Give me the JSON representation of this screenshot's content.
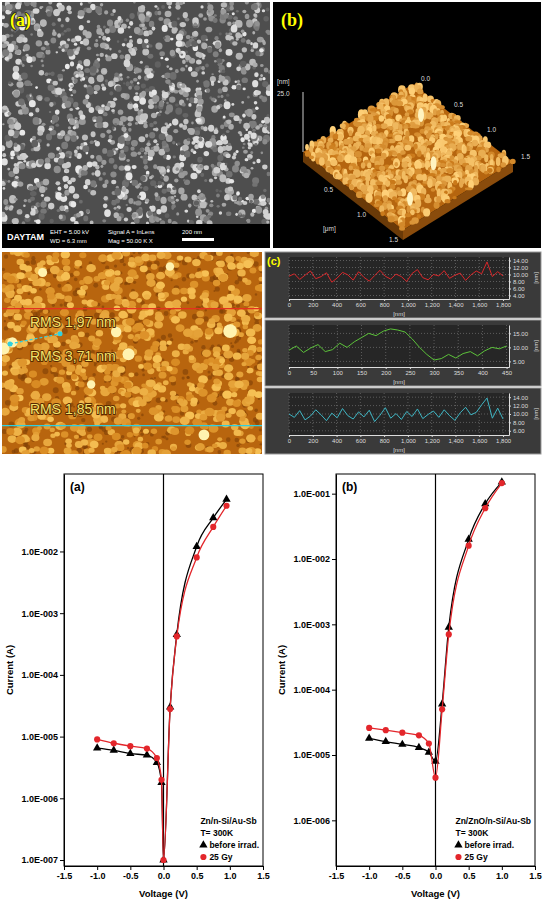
{
  "chart_data": [
    {
      "type": "image",
      "title": "(a)",
      "annotations": [
        "DAYTAM",
        "EHT = 5.00 kV",
        "WD = 6.3 mm",
        "Signal A = InLens",
        "Mag = 50.00 K X",
        "200 nm"
      ]
    },
    {
      "type": "image",
      "title": "(b)",
      "annotations": [
        "[nm]",
        "25.0",
        "0.5",
        "1.0",
        "1.5",
        "[μm]",
        "0.0",
        "0.5",
        "1.0",
        "1.5"
      ]
    },
    {
      "type": "image",
      "annotations": [
        "RMS 1,97 nm",
        "RMS 3,71 nm",
        "RMS 1,85 nm"
      ]
    },
    {
      "type": "line",
      "title": "(c)",
      "xlabel": "[nm]",
      "ylabel": "[nm]",
      "color": "#d8262a",
      "grid": true,
      "xlim": [
        0,
        1850
      ],
      "ylim": [
        3,
        15
      ],
      "xticks": [
        0,
        200,
        400,
        600,
        800,
        {
          "value": 1000,
          "label": "1,000"
        },
        {
          "value": 1200,
          "label": "1,200"
        },
        {
          "value": 1400,
          "label": "1,400"
        },
        {
          "value": 1600,
          "label": "1,600"
        },
        {
          "value": 1800,
          "label": "1,800"
        }
      ],
      "yticks": [
        {
          "value": 4,
          "label": "4.00"
        },
        {
          "value": 6,
          "label": "6.00"
        },
        {
          "value": 8,
          "label": "8.00"
        },
        {
          "value": 10,
          "label": "10.00"
        },
        {
          "value": 12,
          "label": "12.00"
        },
        {
          "value": 14,
          "label": "14.00"
        }
      ],
      "x": [
        0,
        45,
        90,
        135,
        180,
        225,
        270,
        315,
        360,
        405,
        450,
        495,
        540,
        585,
        630,
        675,
        720,
        765,
        810,
        855,
        900,
        945,
        990,
        1035,
        1080,
        1125,
        1170,
        1215,
        1260,
        1305,
        1350,
        1395,
        1440,
        1485,
        1530,
        1575,
        1620,
        1665,
        1710,
        1755,
        1800
      ],
      "values": [
        9.5,
        10.2,
        8.6,
        9.8,
        11.0,
        8.8,
        9.4,
        10.5,
        7.8,
        9.0,
        10.6,
        9.9,
        8.4,
        10.8,
        9.2,
        8.1,
        9.7,
        11.2,
        9.5,
        8.7,
        10.1,
        9.4,
        8.0,
        10.3,
        11.4,
        9.1,
        8.5,
        10.0,
        9.6,
        11.1,
        8.9,
        9.8,
        10.4,
        8.3,
        9.9,
        11.0,
        10.2,
        13.6,
        9.4,
        10.8,
        9.6
      ]
    },
    {
      "type": "line",
      "xlabel": "[nm]",
      "ylabel": "[nm]",
      "color": "#5cc23a",
      "grid": true,
      "xlim": [
        0,
        455
      ],
      "ylim": [
        3,
        18
      ],
      "xticks": [
        0,
        50,
        100,
        150,
        200,
        250,
        300,
        350,
        400,
        450
      ],
      "yticks": [
        {
          "value": 5,
          "label": "5.00"
        },
        {
          "value": 10,
          "label": "10.00"
        },
        {
          "value": 15,
          "label": "15.00"
        }
      ],
      "x": [
        0,
        15,
        30,
        45,
        60,
        75,
        90,
        105,
        120,
        135,
        150,
        165,
        180,
        195,
        210,
        225,
        240,
        255,
        270,
        285,
        300,
        315,
        330,
        345,
        360,
        375,
        390,
        405,
        420,
        435,
        450
      ],
      "values": [
        9.0,
        10.5,
        8.2,
        9.8,
        11.0,
        8.5,
        9.2,
        11.5,
        10.0,
        12.0,
        13.5,
        15.0,
        14.2,
        15.8,
        16.6,
        16.2,
        15.5,
        13.0,
        10.0,
        7.5,
        5.5,
        6.0,
        7.5,
        6.2,
        7.8,
        8.5,
        7.0,
        8.8,
        10.0,
        9.5,
        10.5
      ]
    },
    {
      "type": "line",
      "xlabel": "[nm]",
      "ylabel": "[nm]",
      "color": "#3fb6c4",
      "grid": true,
      "xlim": [
        0,
        1850
      ],
      "ylim": [
        5,
        15
      ],
      "xticks": [
        0,
        200,
        400,
        600,
        800,
        {
          "value": 1000,
          "label": "1,000"
        },
        {
          "value": 1200,
          "label": "1,200"
        },
        {
          "value": 1400,
          "label": "1,400"
        },
        {
          "value": 1600,
          "label": "1,600"
        },
        {
          "value": 1800,
          "label": "1,800"
        }
      ],
      "yticks": [
        {
          "value": 6,
          "label": "6.00"
        },
        {
          "value": 8,
          "label": "8.00"
        },
        {
          "value": 10,
          "label": "10.00"
        },
        {
          "value": 12,
          "label": "12.00"
        },
        {
          "value": 14,
          "label": "14.00"
        }
      ],
      "x": [
        0,
        45,
        90,
        135,
        180,
        225,
        270,
        315,
        360,
        405,
        450,
        495,
        540,
        585,
        630,
        675,
        720,
        765,
        810,
        855,
        900,
        945,
        990,
        1035,
        1080,
        1125,
        1170,
        1215,
        1260,
        1305,
        1350,
        1395,
        1440,
        1485,
        1530,
        1575,
        1620,
        1665,
        1710,
        1755,
        1800
      ],
      "values": [
        10.0,
        9.2,
        10.8,
        8.6,
        9.5,
        11.0,
        9.8,
        8.4,
        10.2,
        9.1,
        11.3,
        9.6,
        8.8,
        10.5,
        9.3,
        10.9,
        8.2,
        9.7,
        11.5,
        9.0,
        10.1,
        8.7,
        10.6,
        9.4,
        11.2,
        8.9,
        9.9,
        10.7,
        9.2,
        11.0,
        9.6,
        8.5,
        10.3,
        11.6,
        9.8,
        10.4,
        12.2,
        13.8,
        9.0,
        11.4,
        8.8
      ]
    },
    {
      "type": "line",
      "title": "(a)",
      "xlabel": "Voltage (V)",
      "ylabel": "Current (A)",
      "annotations": [
        "Zn/n-Si/Au-Sb",
        "T= 300K"
      ],
      "log": "y",
      "legend": "lower right",
      "xlim": [
        -1.5,
        1.5
      ],
      "ylim": [
        8e-08,
        0.18
      ],
      "xticks": [
        -1.5,
        {
          "value": -1,
          "label": "-1.0"
        },
        -0.5,
        {
          "value": 0,
          "label": "0.0"
        },
        0.5,
        {
          "value": 1,
          "label": "1.0"
        },
        1.5
      ],
      "yticks": [
        {
          "value": 1e-07,
          "label": "1.0E-007"
        },
        {
          "value": 1e-06,
          "label": "1.0E-006"
        },
        {
          "value": 1e-05,
          "label": "1.0E-005"
        },
        {
          "value": 0.0001,
          "label": "1.0E-004"
        },
        {
          "value": 0.001,
          "label": "1.0E-003"
        },
        {
          "value": 0.01,
          "label": "1.0E-002"
        }
      ],
      "x": [
        -1.0,
        -0.75,
        -0.5,
        -0.25,
        -0.1,
        -0.03,
        0,
        0.1,
        0.2,
        0.5,
        0.75,
        0.95
      ],
      "series": [
        {
          "name": "before irrad.",
          "color": "#000000",
          "marker": "triangle",
          "values": [
            6.5e-06,
            6e-06,
            5.3e-06,
            5e-06,
            3.8e-06,
            1.8e-06,
            1e-07,
            3e-05,
            0.00045,
            0.012,
            0.035,
            0.07
          ]
        },
        {
          "name": "25 Gy",
          "color": "#e3262b",
          "marker": "circle",
          "values": [
            9e-06,
            7.8e-06,
            7e-06,
            6.4e-06,
            4.5e-06,
            2e-06,
            1e-07,
            2.8e-05,
            0.00042,
            0.008,
            0.025,
            0.055
          ]
        }
      ]
    },
    {
      "type": "line",
      "title": "(b)",
      "xlabel": "Voltage (V)",
      "ylabel": "Current (A)",
      "annotations": [
        "Zn/ZnO/n-Si/Au-Sb",
        "T= 300K"
      ],
      "log": "y",
      "legend": "lower right",
      "xlim": [
        -1.5,
        1.5
      ],
      "ylim": [
        2e-07,
        0.2
      ],
      "xticks": [
        -1.5,
        {
          "value": -1,
          "label": "-1.0"
        },
        -0.5,
        {
          "value": 0,
          "label": "0.0"
        },
        0.5,
        {
          "value": 1,
          "label": "1.0"
        },
        1.5
      ],
      "yticks": [
        {
          "value": 1e-06,
          "label": "1.0E-006"
        },
        {
          "value": 1e-05,
          "label": "1.0E-005"
        },
        {
          "value": 0.0001,
          "label": "1.0E-004"
        },
        {
          "value": 0.001,
          "label": "1.0E-003"
        },
        {
          "value": 0.01,
          "label": "1.0E-002"
        },
        {
          "value": 0.1,
          "label": "1.0E-001"
        }
      ],
      "x": [
        -1.0,
        -0.75,
        -0.5,
        -0.25,
        -0.1,
        0,
        0.1,
        0.2,
        0.5,
        0.75,
        1.0
      ],
      "series": [
        {
          "name": "before irrad.",
          "color": "#000000",
          "marker": "triangle",
          "values": [
            1.8e-05,
            1.6e-05,
            1.45e-05,
            1.3e-05,
            1.1e-05,
            8e-06,
            6e-05,
            0.0009,
            0.02,
            0.07,
            0.15
          ]
        },
        {
          "name": "25 Gy",
          "color": "#e3262b",
          "marker": "circle",
          "values": [
            2.6e-05,
            2.4e-05,
            2.2e-05,
            2e-05,
            1.5e-05,
            4.5e-06,
            5e-05,
            0.0007,
            0.016,
            0.06,
            0.145
          ]
        }
      ]
    }
  ]
}
